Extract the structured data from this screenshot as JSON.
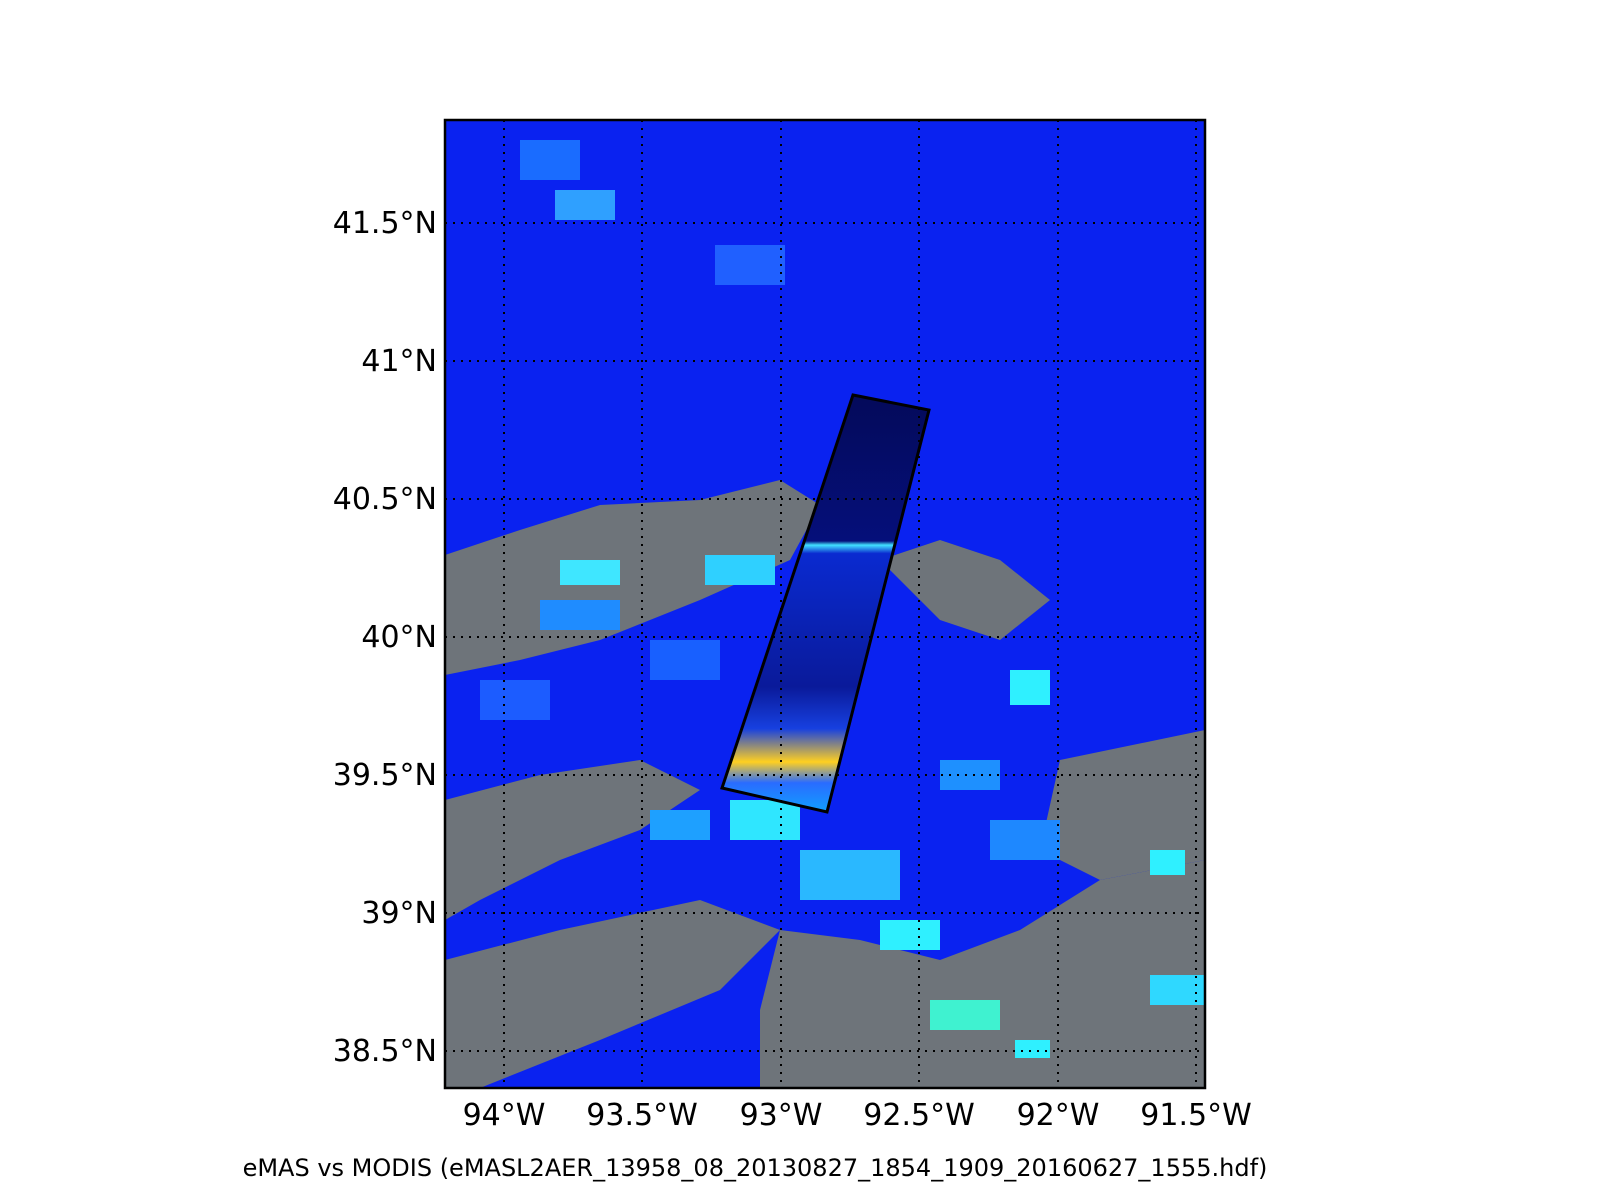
{
  "map": {
    "lat_labels": [
      "41.5°N",
      "41°N",
      "40.5°N",
      "40°N",
      "39.5°N",
      "39°N",
      "38.5°N"
    ],
    "lon_labels": [
      "94°W",
      "93.5°W",
      "93°W",
      "92.5°W",
      "92°W",
      "91.5°W"
    ],
    "caption": "eMAS vs MODIS (eMASL2AER_13958_08_20130827_1854_1909_20160627_1555.hdf)",
    "colors": {
      "background_blue": "#0a22f0",
      "cloud_gray": "#6e747a",
      "swath_dark": "#06106e",
      "frame": "#000000"
    }
  }
}
